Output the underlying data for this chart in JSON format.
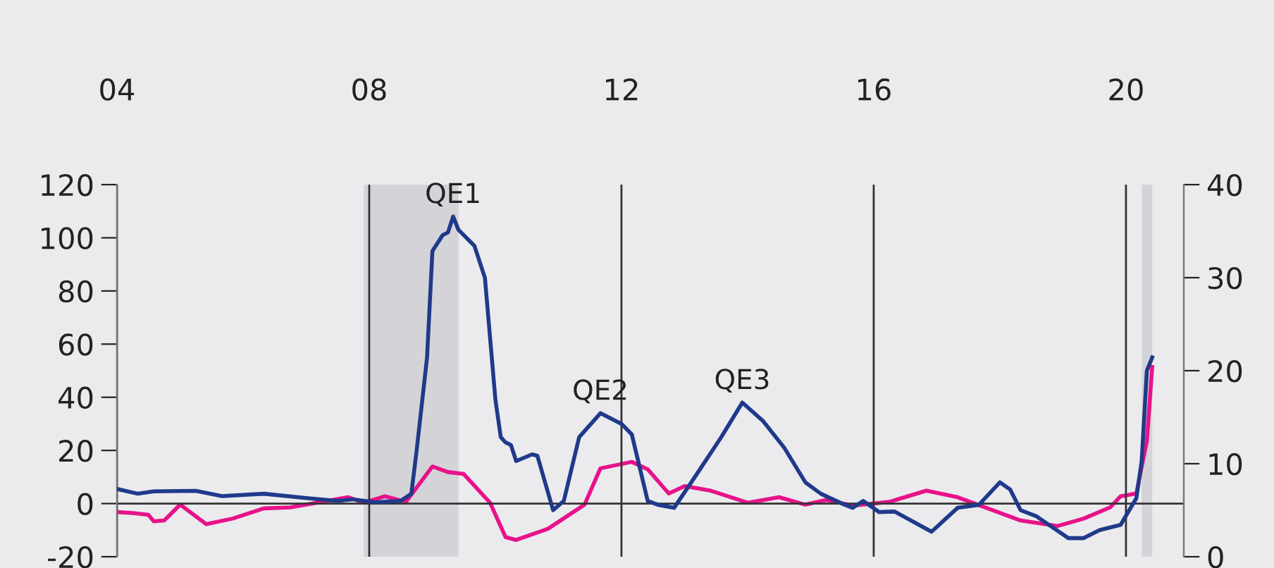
{
  "chart_data": {
    "type": "line",
    "xlim": [
      "2004-01",
      "2020-12"
    ],
    "xticks": [
      {
        "value": "2004-01",
        "label": "04"
      },
      {
        "value": "2008-01",
        "label": "08"
      },
      {
        "value": "2012-01",
        "label": "12"
      },
      {
        "value": "2016-01",
        "label": "16"
      },
      {
        "value": "2020-01",
        "label": "20"
      }
    ],
    "ylim": [
      -20,
      120
    ],
    "yticks": [
      -20,
      0,
      20,
      40,
      60,
      80,
      100,
      120
    ],
    "y2lim": [
      0,
      40
    ],
    "y2ticks": [
      0,
      10,
      20,
      30,
      40
    ],
    "grid": "x",
    "marker": "none",
    "line_style": "solid",
    "ref_lines": [
      {
        "axis": "y",
        "value": 0,
        "color": "#333333"
      }
    ],
    "bands": [
      {
        "axis": "x",
        "from": "2007-12",
        "to": "2009-06",
        "color": "#d4d4d8"
      },
      {
        "axis": "x",
        "from": "2020-04",
        "to": "2020-06",
        "color": "#d4d4d8"
      }
    ],
    "annotations": [
      {
        "text": "QE1",
        "x": "2009-05",
        "y": 108
      },
      {
        "text": "QE2",
        "x": "2011-09",
        "y": 34
      },
      {
        "text": "QE3",
        "x": "2013-12",
        "y": 38
      }
    ],
    "series": [
      {
        "color": "#1f3a8a",
        "x": [
          "2004-01",
          "2004-05",
          "2004-08",
          "2005-04",
          "2005-09",
          "2006-05",
          "2007-01",
          "2007-07",
          "2007-10",
          "2008-02",
          "2008-07",
          "2008-09",
          "2008-10",
          "2008-12",
          "2009-01",
          "2009-03",
          "2009-04",
          "2009-05",
          "2009-06",
          "2009-09",
          "2009-11",
          "2010-01",
          "2010-02",
          "2010-03",
          "2010-04",
          "2010-05",
          "2010-08",
          "2010-09",
          "2010-12",
          "2011-02",
          "2011-05",
          "2011-09",
          "2012-01",
          "2012-03",
          "2012-06",
          "2012-08",
          "2012-11",
          "2013-03",
          "2013-08",
          "2013-12",
          "2014-04",
          "2014-08",
          "2014-12",
          "2015-03",
          "2015-07",
          "2015-09",
          "2015-11",
          "2016-02",
          "2016-05",
          "2016-12",
          "2017-05",
          "2017-09",
          "2018-01",
          "2018-03",
          "2018-05",
          "2018-08",
          "2019-02",
          "2019-05",
          "2019-08",
          "2019-12",
          "2020-03",
          "2020-04",
          "2020-05",
          "2020-06"
        ],
        "values": [
          5.5,
          3.7,
          4.6,
          4.8,
          2.8,
          3.7,
          2.1,
          1,
          1.6,
          0.5,
          1,
          3.7,
          19.6,
          55,
          95,
          101,
          102,
          108,
          103,
          97,
          85,
          39,
          25,
          23,
          22,
          16,
          18.5,
          18,
          -2.5,
          1,
          25,
          34,
          30,
          26,
          1,
          -0.5,
          -1.6,
          10,
          25,
          38,
          31,
          21,
          8,
          3.7,
          0,
          -1.6,
          1,
          -3.2,
          -3,
          -10.6,
          -1.6,
          -0.5,
          8,
          5.3,
          -2.5,
          -4.8,
          -13,
          -13,
          -10,
          -8,
          2,
          16,
          50,
          55
        ]
      },
      {
        "color": "#e8128a",
        "axis": "y2",
        "x": [
          "2004-01",
          "2004-04",
          "2004-07",
          "2004-08",
          "2004-10",
          "2005-01",
          "2005-06",
          "2005-11",
          "2006-05",
          "2006-10",
          "2007-03",
          "2007-09",
          "2007-12",
          "2008-04",
          "2008-08",
          "2009-01",
          "2009-04",
          "2009-07",
          "2009-12",
          "2010-03",
          "2010-05",
          "2010-11",
          "2011-06",
          "2011-09",
          "2012-03",
          "2012-06",
          "2012-10",
          "2013-01",
          "2013-06",
          "2014-01",
          "2014-07",
          "2014-12",
          "2015-04",
          "2015-09",
          "2016-04",
          "2016-11",
          "2017-05",
          "2018-05",
          "2018-12",
          "2019-05",
          "2019-10",
          "2019-12",
          "2020-03",
          "2020-05",
          "2020-06"
        ],
        "values": [
          4.8,
          4.7,
          4.5,
          3.8,
          3.9,
          5.6,
          3.5,
          4.1,
          5.2,
          5.3,
          5.8,
          6.4,
          5.8,
          6.5,
          5.9,
          9.7,
          9.1,
          8.9,
          5.8,
          2.1,
          1.8,
          3.0,
          5.6,
          9.5,
          10.2,
          9.4,
          6.8,
          7.6,
          7.1,
          5.8,
          6.4,
          5.6,
          6.1,
          5.5,
          5.9,
          7.1,
          6.4,
          3.9,
          3.3,
          4.1,
          5.3,
          6.5,
          6.8,
          12.4,
          20.4
        ]
      }
    ]
  }
}
